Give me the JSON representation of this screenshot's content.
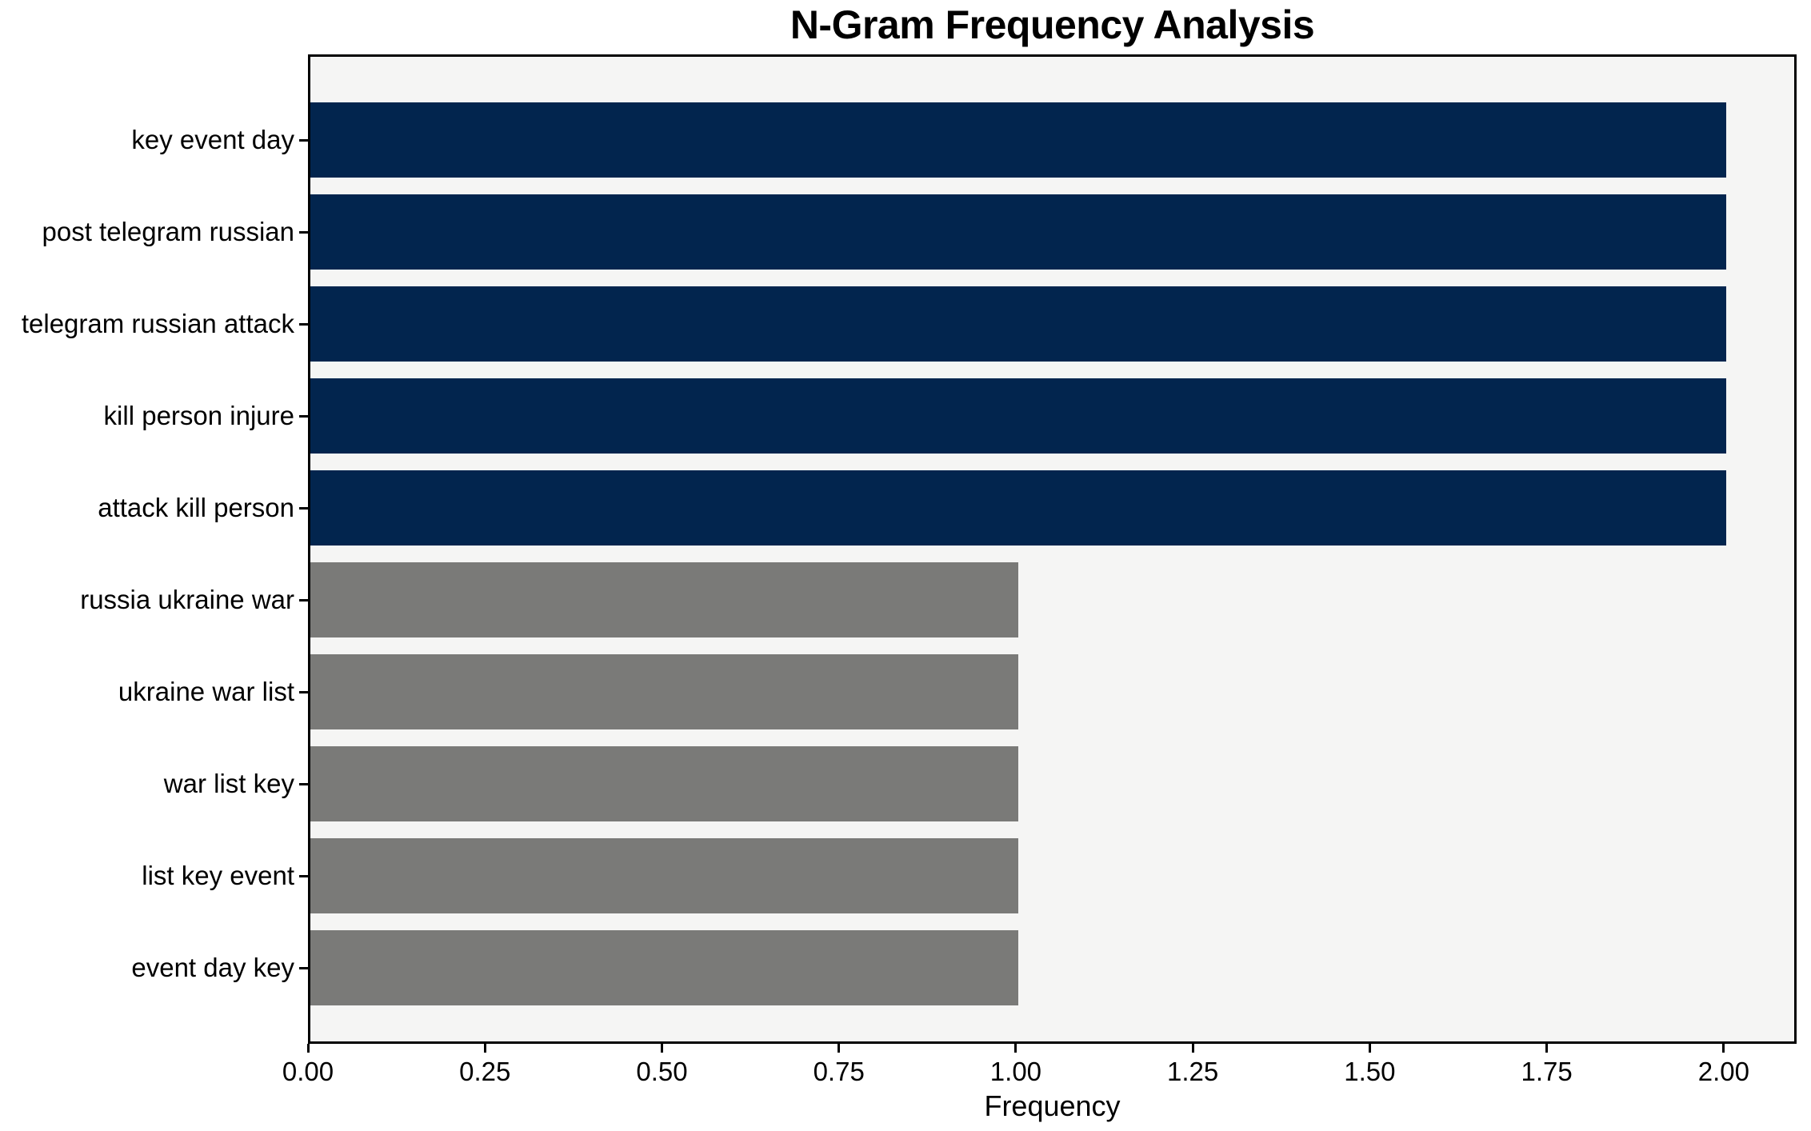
{
  "chart_data": {
    "type": "bar",
    "orientation": "horizontal",
    "title": "N-Gram Frequency Analysis",
    "xlabel": "Frequency",
    "ylabel": "",
    "categories": [
      "key event day",
      "post telegram russian",
      "telegram russian attack",
      "kill person injure",
      "attack kill person",
      "russia ukraine war",
      "ukraine war list",
      "war list key",
      "list key event",
      "event day key"
    ],
    "values": [
      2,
      2,
      2,
      2,
      2,
      1,
      1,
      1,
      1,
      1
    ],
    "bar_colors": [
      "#02254e",
      "#02254e",
      "#02254e",
      "#02254e",
      "#02254e",
      "#7a7a78",
      "#7a7a78",
      "#7a7a78",
      "#7a7a78",
      "#7a7a78"
    ],
    "xlim": [
      0,
      2.103
    ],
    "xticks": [
      0.0,
      0.25,
      0.5,
      0.75,
      1.0,
      1.25,
      1.5,
      1.75,
      2.0
    ],
    "xtick_labels": [
      "0.00",
      "0.25",
      "0.50",
      "0.75",
      "1.00",
      "1.25",
      "1.50",
      "1.75",
      "2.00"
    ],
    "grid": false,
    "legend": "none",
    "plot_background": "#f5f5f4",
    "figure_background": "#ffffff",
    "accent_color_high": "#02254e",
    "accent_color_low": "#7a7a78"
  }
}
